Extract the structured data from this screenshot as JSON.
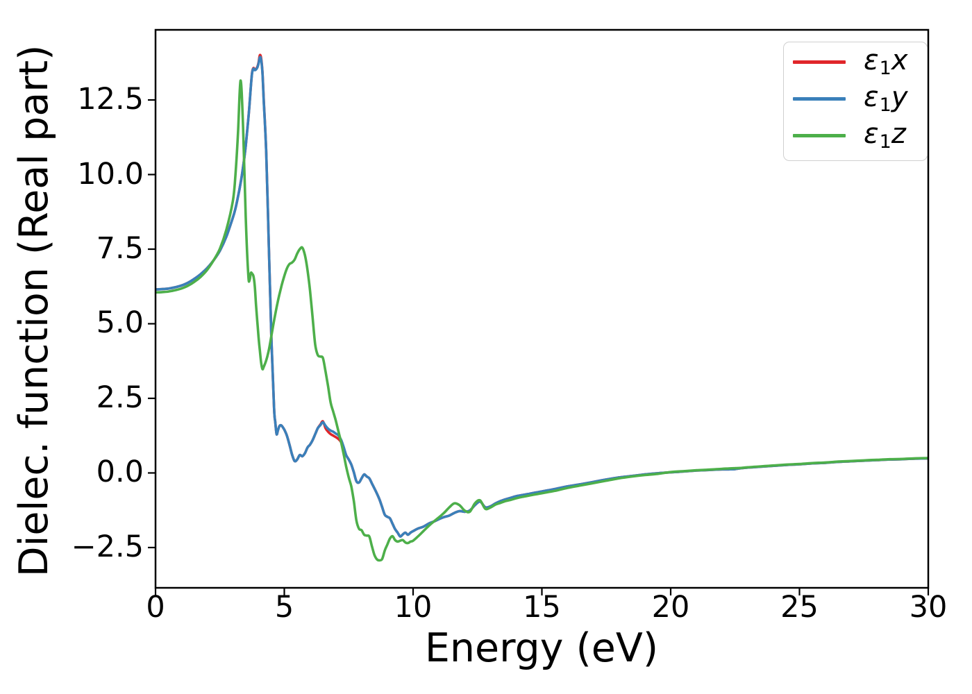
{
  "figure": {
    "background": "#ffffff",
    "text_color": "#000000",
    "frame_color": "#000000"
  },
  "legend": {
    "position": "upper right",
    "items": [
      {
        "name": "epsilon-1-x",
        "symbol": "ε",
        "sub": "1",
        "var": "x",
        "color": "#e0262a"
      },
      {
        "name": "epsilon-1-y",
        "symbol": "ε",
        "sub": "1",
        "var": "y",
        "color": "#3a80ba"
      },
      {
        "name": "epsilon-1-z",
        "symbol": "ε",
        "sub": "1",
        "var": "z",
        "color": "#4daf4a"
      }
    ]
  },
  "chart_data": {
    "type": "line",
    "title": "",
    "xlabel": "Energy (eV)",
    "ylabel": "Dielec. function (Real part)",
    "grid": false,
    "legend_position": "upper right",
    "xlim": [
      0,
      30
    ],
    "ylim": [
      -3.85,
      14.85
    ],
    "xticks": [
      0,
      5,
      10,
      15,
      20,
      25,
      30
    ],
    "xtick_labels": [
      "0",
      "5",
      "10",
      "15",
      "20",
      "25",
      "30"
    ],
    "yticks": [
      -2.5,
      0.0,
      2.5,
      5.0,
      7.5,
      10.0,
      12.5
    ],
    "ytick_labels": [
      "−2.5",
      "0.0",
      "2.5",
      "5.0",
      "7.5",
      "10.0",
      "12.5"
    ],
    "x": [
      0,
      0.25,
      0.5,
      0.75,
      1,
      1.25,
      1.5,
      1.75,
      2,
      2.25,
      2.5,
      2.75,
      3,
      3.1,
      3.2,
      3.3,
      3.4,
      3.5,
      3.6,
      3.65,
      3.7,
      3.75,
      3.8,
      3.85,
      3.9,
      3.95,
      4,
      4.05,
      4.1,
      4.15,
      4.2,
      4.3,
      4.4,
      4.5,
      4.6,
      4.65,
      4.7,
      4.75,
      4.8,
      4.85,
      4.9,
      5,
      5.1,
      5.2,
      5.3,
      5.4,
      5.5,
      5.6,
      5.7,
      5.8,
      5.9,
      6,
      6.1,
      6.2,
      6.3,
      6.4,
      6.5,
      6.6,
      6.7,
      6.8,
      6.9,
      7,
      7.1,
      7.2,
      7.3,
      7.4,
      7.5,
      7.6,
      7.7,
      7.8,
      7.9,
      8,
      8.1,
      8.2,
      8.3,
      8.4,
      8.5,
      8.6,
      8.7,
      8.8,
      8.9,
      9,
      9.1,
      9.2,
      9.3,
      9.4,
      9.5,
      9.6,
      9.7,
      9.8,
      9.9,
      10,
      10.2,
      10.4,
      10.6,
      10.8,
      11,
      11.2,
      11.4,
      11.6,
      11.8,
      12,
      12.2,
      12.4,
      12.6,
      12.8,
      13,
      13.2,
      13.4,
      13.6,
      13.8,
      14,
      14.25,
      14.5,
      14.75,
      15,
      15.25,
      15.5,
      16,
      16.5,
      17,
      17.5,
      18,
      18.5,
      19,
      19.5,
      20,
      20.5,
      21,
      21.5,
      22,
      22.25,
      22.5,
      22.75,
      23,
      23.5,
      24,
      24.5,
      25,
      25.5,
      26,
      26.5,
      27,
      27.5,
      28,
      28.5,
      29,
      29.5,
      30
    ],
    "series": [
      {
        "name": "ε1x",
        "color": "#e0262a",
        "values": [
          6.15,
          6.16,
          6.18,
          6.22,
          6.28,
          6.37,
          6.5,
          6.66,
          6.86,
          7.12,
          7.45,
          7.92,
          8.55,
          8.85,
          9.25,
          9.7,
          10.25,
          10.95,
          11.85,
          12.35,
          12.95,
          13.42,
          13.57,
          13.52,
          13.54,
          13.6,
          13.75,
          14.0,
          13.9,
          13.45,
          12.55,
          10.7,
          7.6,
          4.5,
          2.2,
          1.7,
          1.3,
          1.42,
          1.55,
          1.6,
          1.58,
          1.45,
          1.25,
          0.95,
          0.62,
          0.4,
          0.45,
          0.6,
          0.56,
          0.66,
          0.85,
          0.95,
          1.1,
          1.3,
          1.5,
          1.62,
          1.73,
          1.5,
          1.38,
          1.3,
          1.25,
          1.2,
          1.14,
          1.04,
          0.85,
          0.6,
          0.45,
          0.28,
          0.02,
          -0.28,
          -0.32,
          -0.18,
          -0.05,
          -0.12,
          -0.18,
          -0.35,
          -0.52,
          -0.7,
          -0.9,
          -1.15,
          -1.4,
          -1.47,
          -1.52,
          -1.7,
          -1.88,
          -2.0,
          -2.13,
          -2.06,
          -2.0,
          -2.07,
          -2.0,
          -1.95,
          -1.86,
          -1.8,
          -1.7,
          -1.63,
          -1.55,
          -1.48,
          -1.43,
          -1.34,
          -1.28,
          -1.3,
          -1.26,
          -1.08,
          -0.96,
          -1.15,
          -1.12,
          -1.02,
          -0.94,
          -0.88,
          -0.83,
          -0.78,
          -0.74,
          -0.7,
          -0.66,
          -0.62,
          -0.58,
          -0.54,
          -0.45,
          -0.38,
          -0.3,
          -0.22,
          -0.15,
          -0.1,
          -0.05,
          -0.01,
          0.02,
          0.05,
          0.08,
          0.1,
          0.12,
          0.12,
          0.13,
          0.16,
          0.18,
          0.21,
          0.24,
          0.27,
          0.29,
          0.32,
          0.34,
          0.37,
          0.39,
          0.41,
          0.43,
          0.45,
          0.46,
          0.48,
          0.49
        ]
      },
      {
        "name": "ε1y",
        "color": "#3a80ba",
        "values": [
          6.15,
          6.16,
          6.18,
          6.22,
          6.28,
          6.37,
          6.5,
          6.66,
          6.86,
          7.12,
          7.45,
          7.92,
          8.55,
          8.85,
          9.25,
          9.7,
          10.25,
          10.95,
          11.85,
          12.35,
          12.95,
          13.4,
          13.55,
          13.5,
          13.52,
          13.58,
          13.72,
          13.93,
          13.85,
          13.42,
          12.5,
          10.7,
          7.6,
          4.5,
          2.2,
          1.7,
          1.3,
          1.42,
          1.55,
          1.6,
          1.58,
          1.45,
          1.25,
          0.95,
          0.62,
          0.4,
          0.45,
          0.6,
          0.56,
          0.66,
          0.85,
          0.95,
          1.1,
          1.3,
          1.5,
          1.6,
          1.7,
          1.58,
          1.48,
          1.42,
          1.38,
          1.32,
          1.26,
          1.12,
          0.88,
          0.6,
          0.45,
          0.28,
          0.02,
          -0.28,
          -0.32,
          -0.18,
          -0.05,
          -0.12,
          -0.18,
          -0.35,
          -0.52,
          -0.7,
          -0.9,
          -1.15,
          -1.4,
          -1.47,
          -1.52,
          -1.7,
          -1.88,
          -2.0,
          -2.13,
          -2.06,
          -2.0,
          -2.07,
          -2.0,
          -1.95,
          -1.86,
          -1.8,
          -1.7,
          -1.63,
          -1.55,
          -1.48,
          -1.43,
          -1.34,
          -1.28,
          -1.3,
          -1.26,
          -1.08,
          -0.96,
          -1.15,
          -1.12,
          -1.02,
          -0.94,
          -0.88,
          -0.83,
          -0.78,
          -0.74,
          -0.7,
          -0.66,
          -0.62,
          -0.58,
          -0.54,
          -0.45,
          -0.38,
          -0.3,
          -0.22,
          -0.15,
          -0.1,
          -0.05,
          -0.01,
          0.02,
          0.05,
          0.08,
          0.1,
          0.12,
          0.12,
          0.13,
          0.16,
          0.18,
          0.21,
          0.24,
          0.27,
          0.29,
          0.32,
          0.34,
          0.37,
          0.39,
          0.41,
          0.43,
          0.45,
          0.46,
          0.48,
          0.49
        ]
      },
      {
        "name": "ε1z",
        "color": "#4daf4a",
        "values": [
          6.05,
          6.06,
          6.08,
          6.12,
          6.18,
          6.27,
          6.4,
          6.57,
          6.8,
          7.12,
          7.52,
          8.15,
          9.1,
          9.95,
          11.35,
          13.15,
          11.6,
          8.6,
          6.65,
          6.45,
          6.7,
          6.68,
          6.6,
          6.3,
          5.65,
          5.1,
          4.55,
          4.1,
          3.7,
          3.48,
          3.55,
          3.78,
          4.12,
          4.6,
          5.1,
          5.32,
          5.55,
          5.75,
          5.95,
          6.12,
          6.3,
          6.6,
          6.85,
          7.0,
          7.05,
          7.15,
          7.35,
          7.5,
          7.55,
          7.3,
          6.8,
          6.1,
          5.2,
          4.3,
          3.95,
          3.9,
          3.85,
          3.4,
          2.9,
          2.35,
          2.05,
          1.75,
          1.4,
          1.05,
          0.65,
          0.22,
          -0.15,
          -0.45,
          -0.95,
          -1.6,
          -1.87,
          -1.92,
          -2.07,
          -2.1,
          -2.13,
          -2.45,
          -2.75,
          -2.9,
          -2.93,
          -2.88,
          -2.6,
          -2.4,
          -2.2,
          -2.12,
          -2.25,
          -2.3,
          -2.27,
          -2.25,
          -2.33,
          -2.35,
          -2.3,
          -2.27,
          -2.12,
          -1.95,
          -1.78,
          -1.63,
          -1.49,
          -1.34,
          -1.16,
          -1.02,
          -1.08,
          -1.26,
          -1.3,
          -1.02,
          -0.92,
          -1.2,
          -1.16,
          -1.06,
          -1.0,
          -0.94,
          -0.9,
          -0.85,
          -0.8,
          -0.76,
          -0.72,
          -0.68,
          -0.64,
          -0.6,
          -0.5,
          -0.42,
          -0.34,
          -0.26,
          -0.18,
          -0.12,
          -0.07,
          -0.03,
          0.03,
          0.06,
          0.09,
          0.11,
          0.14,
          0.15,
          0.16,
          0.17,
          0.19,
          0.22,
          0.25,
          0.28,
          0.3,
          0.33,
          0.35,
          0.38,
          0.4,
          0.42,
          0.44,
          0.46,
          0.47,
          0.49,
          0.5
        ]
      }
    ]
  }
}
